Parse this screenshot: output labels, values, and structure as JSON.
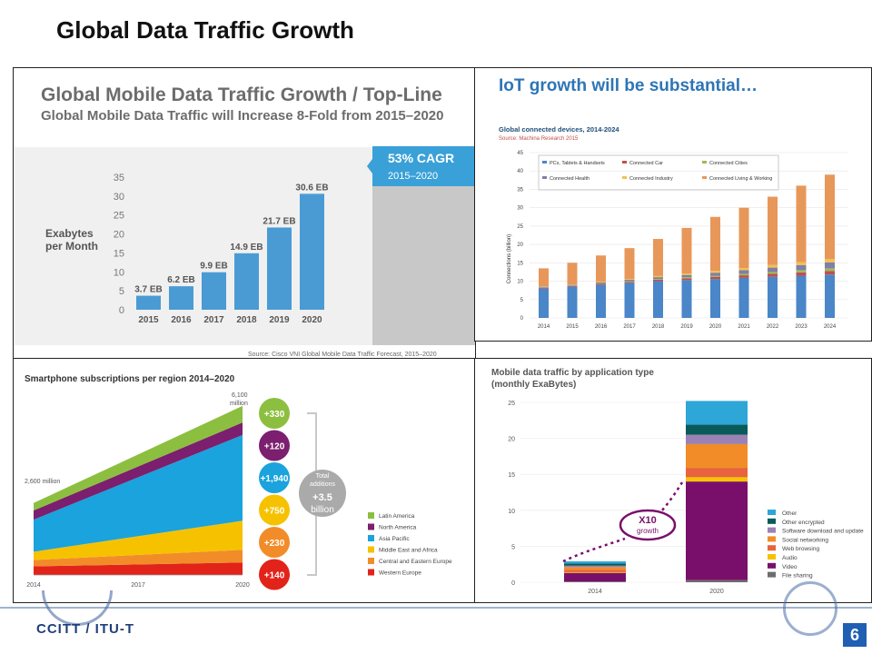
{
  "slide": {
    "title": "Global Data Traffic  Growth",
    "page_number": "6",
    "footer_logo_text": "CCITT / ITU-T"
  },
  "chart_data": [
    {
      "type": "bar",
      "title": "Global Mobile Data Traffic Growth / Top-Line",
      "subtitle": "Global Mobile Data Traffic will Increase 8-Fold from 2015–2020",
      "ylabel_line1": "Exabytes",
      "ylabel_line2": "per Month",
      "categories": [
        "2015",
        "2016",
        "2017",
        "2018",
        "2019",
        "2020"
      ],
      "values": [
        3.7,
        6.2,
        9.9,
        14.9,
        21.7,
        30.6
      ],
      "data_labels": [
        "3.7 EB",
        "6.2 EB",
        "9.9 EB",
        "14.9 EB",
        "21.7 EB",
        "30.6 EB"
      ],
      "yticks": [
        0,
        5,
        10,
        15,
        20,
        25,
        30,
        35
      ],
      "ylim": [
        0,
        35
      ],
      "callout_title": "53% CAGR",
      "callout_sub": "2015–2020",
      "source": "Source: Cisco VNI Global Mobile Data Traffic Forecast, 2015–2020",
      "colors": {
        "bar": "#4a9bd4",
        "callout": "#3aa0d8",
        "band": "#f0f0f0"
      }
    },
    {
      "type": "bar",
      "stacked": true,
      "header": "IoT growth will be substantial…",
      "title": "Global connected devices, 2014-2024",
      "source": "Source: Machina Research 2015",
      "ylabel": "Connections (billion)",
      "categories": [
        "2014",
        "2015",
        "2016",
        "2017",
        "2018",
        "2019",
        "2020",
        "2021",
        "2022",
        "2023",
        "2024"
      ],
      "yticks": [
        0,
        5,
        10,
        15,
        20,
        25,
        30,
        35,
        40,
        45
      ],
      "ylim": [
        0,
        45
      ],
      "series": [
        {
          "name": "PCs, Tablets & Handsets",
          "color": "#4a86c8",
          "values": [
            8,
            8.5,
            9,
            9.5,
            10,
            10.3,
            10.6,
            10.9,
            11.2,
            11.5,
            11.8
          ]
        },
        {
          "name": "Connected Car",
          "color": "#c0504d",
          "values": [
            0.2,
            0.2,
            0.3,
            0.3,
            0.4,
            0.5,
            0.6,
            0.7,
            0.8,
            0.9,
            1.0
          ]
        },
        {
          "name": "Connected Cities",
          "color": "#9bbb59",
          "values": [
            0.1,
            0.1,
            0.1,
            0.2,
            0.2,
            0.3,
            0.3,
            0.4,
            0.5,
            0.6,
            0.7
          ]
        },
        {
          "name": "Connected Health",
          "color": "#7f7fa8",
          "values": [
            0.2,
            0.2,
            0.3,
            0.4,
            0.5,
            0.6,
            0.8,
            1.0,
            1.2,
            1.4,
            1.6
          ]
        },
        {
          "name": "Connected Industry",
          "color": "#f2c14e",
          "values": [
            0.1,
            0.1,
            0.2,
            0.2,
            0.3,
            0.4,
            0.5,
            0.6,
            0.7,
            0.8,
            0.9
          ]
        },
        {
          "name": "Connected Living & Working",
          "color": "#e8975a",
          "values": [
            4.9,
            5.9,
            7.1,
            8.4,
            10.1,
            12.4,
            14.7,
            16.4,
            18.6,
            20.8,
            23.0
          ]
        }
      ]
    },
    {
      "type": "area",
      "stacked": true,
      "title": "Smartphone subscriptions per region 2014–2020",
      "x": [
        "2014",
        "2017",
        "2020"
      ],
      "start_label": "2,600 million",
      "end_label_line1": "6,100",
      "end_label_line2": "million",
      "series": [
        {
          "name": "Latin America",
          "color": "#8cbf3f",
          "start": 270,
          "end": 600
        },
        {
          "name": "North America",
          "color": "#7b1f6e",
          "start": 330,
          "end": 450
        },
        {
          "name": "Asia Pacific",
          "color": "#1aa3dc",
          "start": 1160,
          "end": 3100
        },
        {
          "name": "Middle East and Africa",
          "color": "#f6c200",
          "start": 300,
          "end": 1050
        },
        {
          "name": "Central and Eastern Europe",
          "color": "#f28c28",
          "start": 230,
          "end": 460
        },
        {
          "name": "Western Europe",
          "color": "#e2231a",
          "start": 310,
          "end": 450
        }
      ],
      "additions": [
        "+330",
        "+120",
        "+1,940",
        "+750",
        "+230",
        "+140"
      ],
      "total_line1": "Total",
      "total_line2": "additions",
      "total_line3": "+3.5",
      "total_line4": "billion"
    },
    {
      "type": "bar",
      "stacked": true,
      "title_line1": "Mobile data traffic by application type",
      "title_line2": "(monthly ExaBytes)",
      "categories": [
        "2014",
        "2020"
      ],
      "yticks": [
        0,
        5,
        10,
        15,
        20,
        25
      ],
      "ylim": [
        0,
        27
      ],
      "callout_line1": "X10",
      "callout_line2": "growth",
      "series": [
        {
          "name": "File sharing",
          "color": "#6d6d6d",
          "values": [
            0.1,
            0.3
          ]
        },
        {
          "name": "Video",
          "color": "#7a0f6b",
          "values": [
            1.2,
            13.7
          ]
        },
        {
          "name": "Audio",
          "color": "#f6c200",
          "values": [
            0.1,
            0.6
          ]
        },
        {
          "name": "Web browsing",
          "color": "#e8643c",
          "values": [
            0.3,
            1.3
          ]
        },
        {
          "name": "Social networking",
          "color": "#f28c28",
          "values": [
            0.4,
            3.3
          ]
        },
        {
          "name": "Software download and update",
          "color": "#9a82b4",
          "values": [
            0.2,
            1.3
          ]
        },
        {
          "name": "Other encrypted",
          "color": "#0a5a5a",
          "values": [
            0.3,
            1.4
          ]
        },
        {
          "name": "Other",
          "color": "#2ea6d8",
          "values": [
            0.3,
            3.3
          ]
        }
      ]
    }
  ]
}
